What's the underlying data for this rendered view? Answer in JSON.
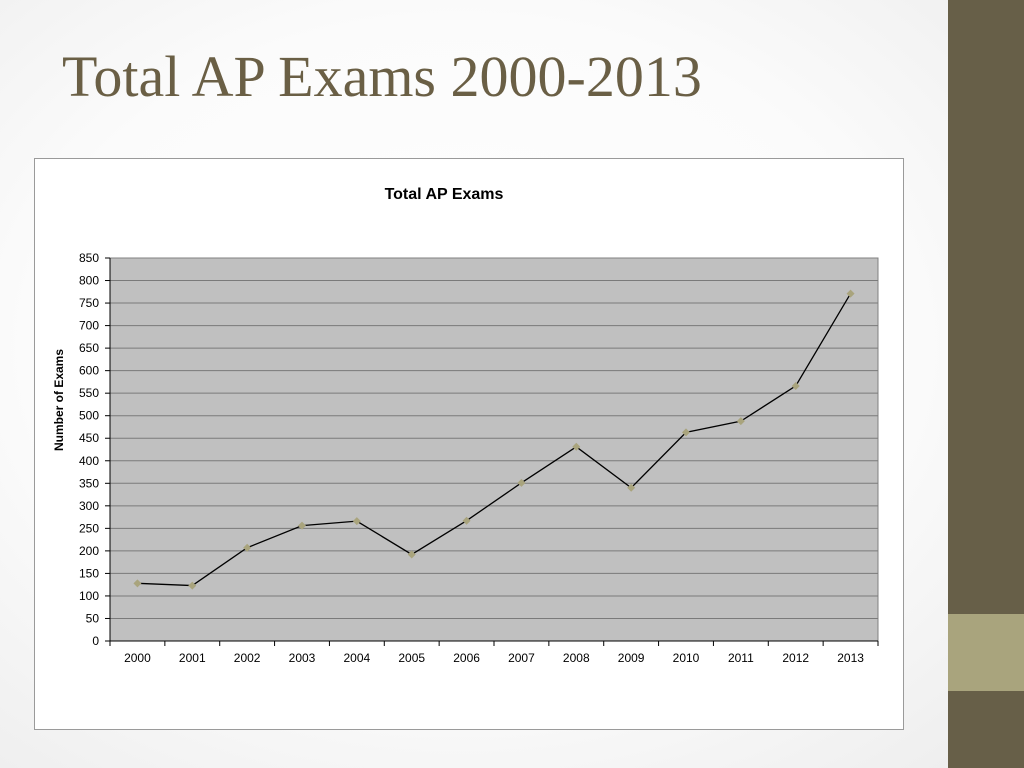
{
  "slide": {
    "title": "Total AP Exams 2000-2013",
    "colors": {
      "title": "#6a5f45",
      "sidebar": "#675f48",
      "sidebar_accent": "#a9a47d"
    }
  },
  "chart_data": {
    "type": "line",
    "title": "Total AP Exams",
    "xlabel": "",
    "ylabel": "Number of Exams",
    "categories": [
      "2000",
      "2001",
      "2002",
      "2003",
      "2004",
      "2005",
      "2006",
      "2007",
      "2008",
      "2009",
      "2010",
      "2011",
      "2012",
      "2013"
    ],
    "values": [
      128,
      123,
      207,
      256,
      266,
      192,
      267,
      351,
      431,
      340,
      463,
      488,
      566,
      771
    ],
    "ylim": [
      0,
      850
    ],
    "yticks": [
      0,
      50,
      100,
      150,
      200,
      250,
      300,
      350,
      400,
      450,
      500,
      550,
      600,
      650,
      700,
      750,
      800,
      850
    ],
    "grid": true,
    "legend": "none",
    "colors": {
      "plot_background": "#c0c0c0",
      "line": "#000000",
      "marker": "#a9a47d",
      "gridline": "#7a7a7a"
    }
  }
}
